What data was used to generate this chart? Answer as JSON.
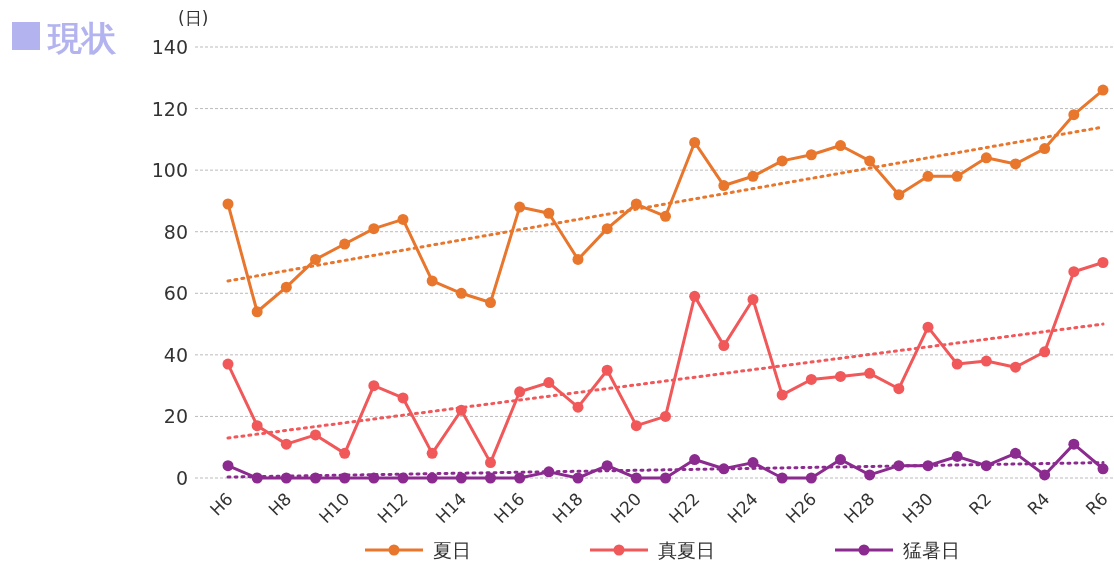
{
  "chart_data": {
    "type": "line",
    "title": "現状",
    "ylabel": "(日)",
    "categories": [
      "H6",
      null,
      "H8",
      null,
      "H10",
      null,
      "H12",
      null,
      "H14",
      null,
      "H16",
      null,
      "H18",
      null,
      "H20",
      null,
      "H22",
      null,
      "H24",
      null,
      "H26",
      null,
      "H28",
      null,
      "H30",
      null,
      "R2",
      null,
      "R4",
      null,
      "R6"
    ],
    "ylim": [
      0,
      140
    ],
    "yticks": [
      0,
      20,
      40,
      60,
      80,
      100,
      120,
      140
    ],
    "grid": "y",
    "legend": "bottom",
    "marker": "circle",
    "line_style": "solid",
    "series": [
      {
        "name": "夏日",
        "color": "#e8762c",
        "values": [
          89,
          54,
          62,
          71,
          76,
          81,
          84,
          64,
          60,
          57,
          88,
          86,
          71,
          81,
          89,
          85,
          109,
          95,
          98,
          103,
          105,
          108,
          103,
          92,
          98,
          98,
          104,
          102,
          107,
          118,
          126
        ]
      },
      {
        "name": "真夏日",
        "color": "#f0585a",
        "values": [
          37,
          17,
          11,
          14,
          8,
          30,
          26,
          8,
          22,
          5,
          28,
          31,
          23,
          35,
          17,
          20,
          59,
          43,
          58,
          27,
          32,
          33,
          34,
          29,
          49,
          37,
          38,
          36,
          41,
          67,
          70
        ]
      },
      {
        "name": "猛暑日",
        "color": "#8b2a8f",
        "values": [
          4,
          0,
          0,
          0,
          0,
          0,
          0,
          0,
          0,
          0,
          0,
          2,
          0,
          4,
          0,
          0,
          6,
          3,
          5,
          0,
          0,
          6,
          1,
          4,
          4,
          7,
          4,
          8,
          1,
          11,
          3
        ]
      },
      {
        "type": "line",
        "color": "#e8762c",
        "x": [
          "H6",
          "R6"
        ],
        "values": [
          64,
          114
        ],
        "marker": "none",
        "line_style": "dotted"
      },
      {
        "type": "line",
        "color": "#f0585a",
        "x": [
          "H6",
          "R6"
        ],
        "values": [
          13,
          50
        ],
        "marker": "none",
        "line_style": "dotted"
      },
      {
        "type": "line",
        "color": "#8b2a8f",
        "x": [
          "H6",
          "R6"
        ],
        "values": [
          0.3,
          5
        ],
        "marker": "none",
        "line_style": "dotted"
      }
    ]
  }
}
